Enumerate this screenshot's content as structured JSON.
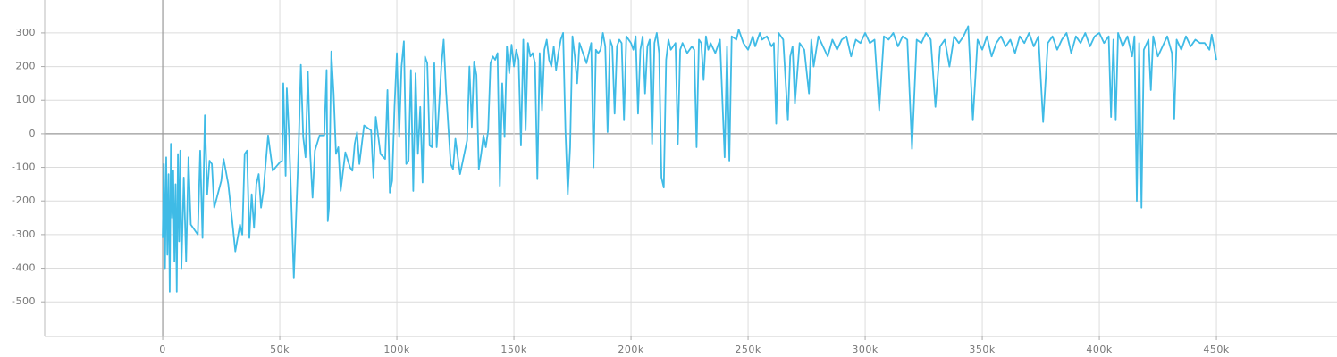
{
  "chart_data": {
    "type": "line",
    "color": "#3fbbe6",
    "grid": true,
    "xlim": [
      -50400,
      501500
    ],
    "ylim": [
      -603,
      398
    ],
    "xticks": [
      {
        "value": 0,
        "label": "0"
      },
      {
        "value": 50000,
        "label": "50k"
      },
      {
        "value": 100000,
        "label": "100k"
      },
      {
        "value": 150000,
        "label": "150k"
      },
      {
        "value": 200000,
        "label": "200k"
      },
      {
        "value": 250000,
        "label": "250k"
      },
      {
        "value": 300000,
        "label": "300k"
      },
      {
        "value": 350000,
        "label": "350k"
      },
      {
        "value": 400000,
        "label": "400k"
      },
      {
        "value": 450000,
        "label": "450k"
      }
    ],
    "yticks": [
      -500,
      -400,
      -300,
      -200,
      -100,
      0,
      100,
      200,
      300
    ],
    "x": [
      0,
      500,
      1000,
      1500,
      2000,
      2500,
      3000,
      3500,
      4000,
      4500,
      5000,
      5500,
      6000,
      6500,
      7000,
      7500,
      8000,
      9000,
      10000,
      11000,
      12000,
      15000,
      16000,
      17000,
      18000,
      19000,
      20000,
      21000,
      22000,
      25000,
      26000,
      28000,
      30000,
      31000,
      33000,
      34000,
      35000,
      36000,
      37000,
      38000,
      39000,
      40000,
      41000,
      42000,
      43000,
      45000,
      47000,
      50000,
      51000,
      51500,
      52500,
      53000,
      54000,
      56000,
      58000,
      59000,
      60000,
      61000,
      62000,
      63000,
      64000,
      65000,
      67000,
      69000,
      70000,
      70500,
      71000,
      72000,
      73000,
      74000,
      75000,
      76000,
      78000,
      80000,
      81000,
      82000,
      83000,
      84000,
      86000,
      89000,
      90000,
      91000,
      93000,
      95000,
      96000,
      97000,
      98000,
      99000,
      100000,
      101000,
      102000,
      103000,
      104000,
      105000,
      106000,
      107000,
      108000,
      109000,
      110000,
      111000,
      112000,
      113000,
      114000,
      115000,
      116000,
      117000,
      119000,
      120000,
      121000,
      123000,
      124000,
      125000,
      127000,
      130000,
      131000,
      132000,
      133000,
      134000,
      135000,
      136000,
      137000,
      138000,
      139000,
      140000,
      141000,
      142000,
      143000,
      144000,
      145000,
      146000,
      147000,
      148000,
      149000,
      150000,
      151000,
      152000,
      153000,
      154000,
      155000,
      156000,
      157000,
      158000,
      159000,
      160000,
      161000,
      162000,
      163000,
      164000,
      165000,
      166000,
      167000,
      168000,
      169000,
      170000,
      171000,
      172000,
      173000,
      174000,
      175000,
      176000,
      177000,
      178000,
      179000,
      180000,
      181000,
      183000,
      184000,
      185000,
      186000,
      187000,
      188000,
      189000,
      190000,
      191000,
      192000,
      193000,
      194000,
      195000,
      196000,
      197000,
      198000,
      200000,
      201000,
      202000,
      203000,
      204000,
      205000,
      206000,
      207000,
      208000,
      209000,
      210000,
      211000,
      212000,
      213000,
      214000,
      215000,
      216000,
      217000,
      219000,
      220000,
      221000,
      222000,
      224000,
      226000,
      227000,
      228000,
      229000,
      230000,
      231000,
      232000,
      233000,
      234000,
      236000,
      238000,
      240000,
      241000,
      242000,
      243000,
      245000,
      246000,
      248000,
      250000,
      252000,
      253000,
      255000,
      256000,
      258000,
      260000,
      261000,
      262000,
      263000,
      265000,
      267000,
      268000,
      269000,
      270000,
      272000,
      274000,
      276000,
      277000,
      278000,
      280000,
      282000,
      284000,
      286000,
      288000,
      290000,
      292000,
      294000,
      296000,
      298000,
      300000,
      302000,
      304000,
      306000,
      308000,
      310000,
      312000,
      314000,
      316000,
      318000,
      320000,
      322000,
      324000,
      326000,
      328000,
      330000,
      332000,
      334000,
      336000,
      338000,
      340000,
      342000,
      344000,
      346000,
      348000,
      350000,
      352000,
      354000,
      356000,
      358000,
      360000,
      362000,
      364000,
      366000,
      368000,
      370000,
      372000,
      374000,
      376000,
      378000,
      380000,
      382000,
      384000,
      386000,
      388000,
      390000,
      392000,
      394000,
      396000,
      398000,
      400000,
      402000,
      404000,
      405000,
      406000,
      407000,
      408000,
      410000,
      412000,
      414000,
      415000,
      416000,
      417000,
      418000,
      419000,
      421000,
      422000,
      423000,
      425000,
      427000,
      429000,
      431000,
      432000,
      433000,
      435000,
      437000,
      439000,
      441000,
      443000,
      445000,
      447000,
      448000,
      450000
    ],
    "values": [
      -310,
      -90,
      -400,
      -70,
      -360,
      -120,
      -470,
      -30,
      -250,
      -110,
      -380,
      -150,
      -470,
      -60,
      -320,
      -50,
      -400,
      -130,
      -380,
      -70,
      -270,
      -300,
      -50,
      -310,
      55,
      -180,
      -80,
      -90,
      -220,
      -140,
      -75,
      -150,
      -280,
      -350,
      -270,
      -300,
      -60,
      -50,
      -310,
      -180,
      -280,
      -150,
      -120,
      -220,
      -170,
      -5,
      -110,
      -85,
      -80,
      150,
      -125,
      135,
      -10,
      -430,
      -50,
      205,
      -10,
      -70,
      185,
      -60,
      -190,
      -50,
      -5,
      -5,
      190,
      -260,
      -220,
      245,
      120,
      -60,
      -40,
      -170,
      -55,
      -100,
      -110,
      -30,
      5,
      -90,
      25,
      10,
      -130,
      50,
      -60,
      -75,
      130,
      -175,
      -140,
      80,
      240,
      -10,
      200,
      275,
      -90,
      -80,
      190,
      -170,
      180,
      -60,
      80,
      -145,
      230,
      210,
      -35,
      -40,
      210,
      -40,
      200,
      280,
      130,
      -90,
      -105,
      -15,
      -120,
      -20,
      200,
      20,
      215,
      175,
      -105,
      -60,
      -5,
      -40,
      10,
      210,
      230,
      220,
      240,
      -155,
      150,
      -10,
      260,
      180,
      265,
      200,
      250,
      220,
      -35,
      280,
      10,
      270,
      230,
      240,
      210,
      -135,
      240,
      70,
      250,
      280,
      220,
      200,
      260,
      190,
      240,
      280,
      300,
      10,
      -180,
      -40,
      290,
      230,
      150,
      270,
      250,
      230,
      210,
      270,
      -100,
      250,
      240,
      250,
      300,
      260,
      5,
      280,
      260,
      60,
      260,
      280,
      270,
      40,
      290,
      270,
      250,
      290,
      60,
      250,
      290,
      120,
      260,
      280,
      -30,
      270,
      300,
      240,
      -130,
      -160,
      220,
      280,
      250,
      270,
      -30,
      250,
      270,
      240,
      260,
      250,
      -40,
      280,
      270,
      160,
      290,
      250,
      270,
      240,
      280,
      -70,
      260,
      -80,
      290,
      280,
      310,
      270,
      250,
      290,
      260,
      300,
      280,
      290,
      260,
      270,
      30,
      300,
      280,
      40,
      230,
      260,
      90,
      270,
      250,
      120,
      280,
      200,
      290,
      260,
      230,
      280,
      250,
      280,
      290,
      230,
      280,
      270,
      300,
      270,
      280,
      70,
      290,
      280,
      300,
      260,
      290,
      280,
      -45,
      280,
      270,
      300,
      280,
      80,
      260,
      280,
      200,
      290,
      270,
      290,
      320,
      40,
      280,
      250,
      290,
      230,
      270,
      290,
      260,
      280,
      240,
      290,
      270,
      300,
      260,
      290,
      35,
      270,
      290,
      250,
      280,
      300,
      240,
      290,
      270,
      300,
      260,
      290,
      300,
      270,
      290,
      50,
      280,
      40,
      300,
      260,
      290,
      230,
      290,
      -200,
      270,
      -220,
      250,
      280,
      130,
      290,
      230,
      260,
      290,
      240,
      45,
      280,
      250,
      290,
      260,
      280,
      270,
      270,
      250,
      295,
      220
    ]
  }
}
